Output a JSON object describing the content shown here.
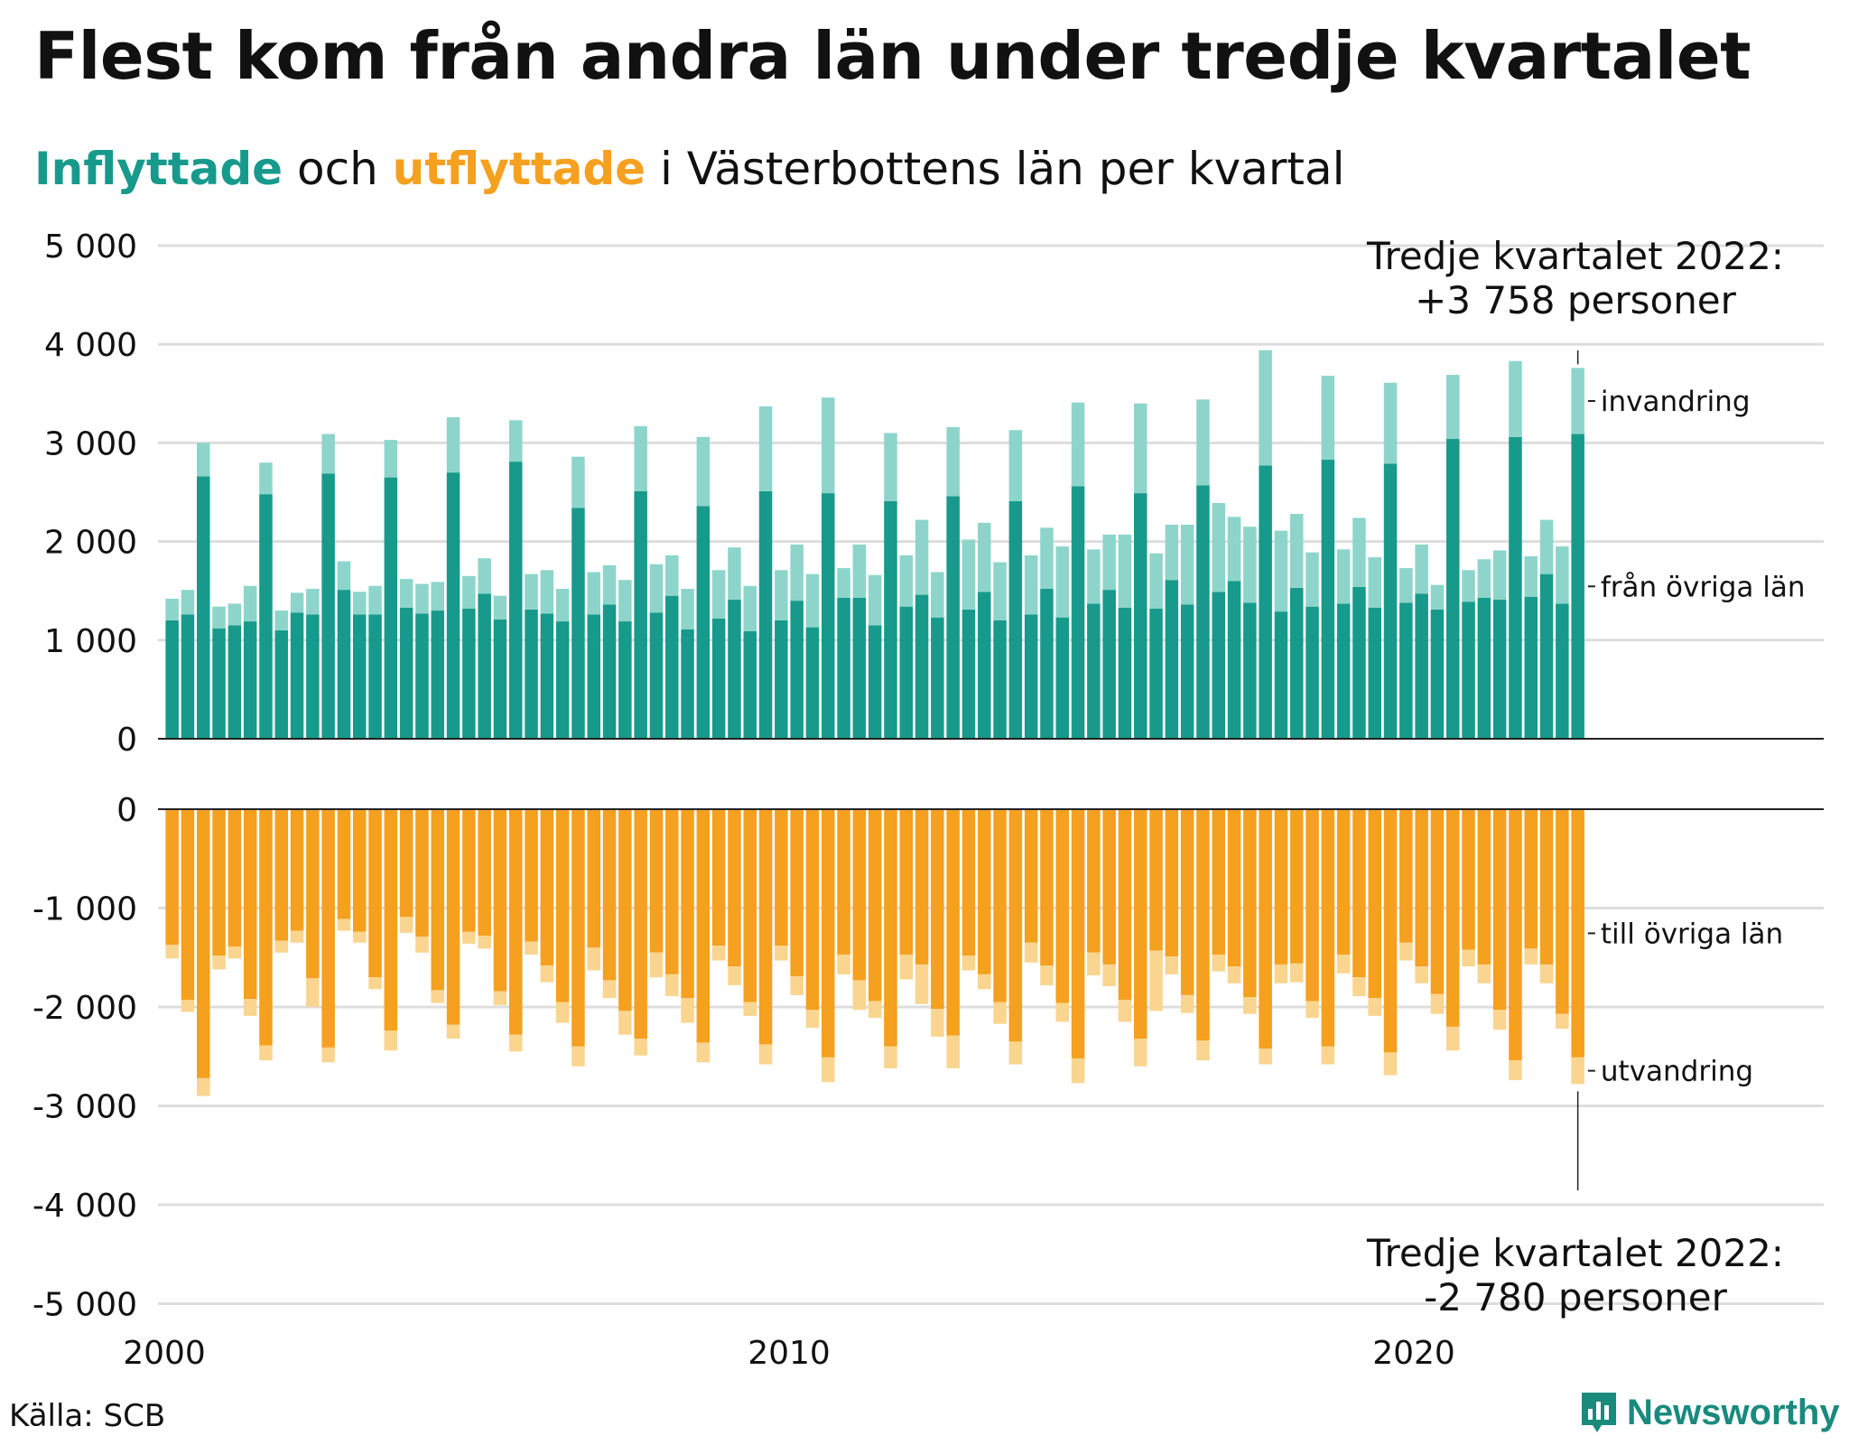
{
  "title": "Flest kom från andra län under tredje kvartalet",
  "subtitle": {
    "in_word": "Inflyttade",
    "and_word": " och ",
    "out_word": "utflyttade",
    "rest": " i Västerbottens län per kvartal"
  },
  "annotations": {
    "top_line1": "Tredje kvartalet 2022:",
    "top_line2": "+3 758 personer",
    "bottom_line1": "Tredje kvartalet 2022:",
    "bottom_line2": "-2 780 personer"
  },
  "source": "Källa: SCB",
  "brand": "Newsworthy",
  "colors": {
    "in_domestic": "#179a8b",
    "in_immigration": "#8dd5cb",
    "out_domestic": "#f5a01f",
    "out_emigration": "#fad58f",
    "grid": "#dddddd",
    "axis": "#222222"
  },
  "chart_data": {
    "type": "bar",
    "stacked": true,
    "grid": true,
    "panels": [
      {
        "name": "inflyttade",
        "ylim": [
          0,
          5000
        ],
        "yticks": [
          "0",
          "1 000",
          "2 000",
          "3 000",
          "4 000",
          "5 000"
        ]
      },
      {
        "name": "utflyttade",
        "ylim": [
          -5000,
          0
        ],
        "yticks": [
          "0",
          "-1 000",
          "-2 000",
          "-3 000",
          "-4 000",
          "-5 000"
        ]
      }
    ],
    "xticks": [
      "2000",
      "2010",
      "2020"
    ],
    "x_start": "2000Q1",
    "x_end": "2022Q3",
    "series": [
      {
        "name": "från övriga län",
        "panel": "inflyttade",
        "values": [
          1200,
          1260,
          2660,
          1120,
          1150,
          1190,
          2480,
          1100,
          1280,
          1260,
          2690,
          1510,
          1260,
          1260,
          2650,
          1330,
          1270,
          1300,
          2700,
          1320,
          1470,
          1210,
          2810,
          1310,
          1270,
          1190,
          2340,
          1260,
          1360,
          1190,
          2510,
          1280,
          1450,
          1110,
          2360,
          1220,
          1410,
          1090,
          2510,
          1200,
          1400,
          1130,
          2490,
          1430,
          1430,
          1150,
          2410,
          1340,
          1460,
          1230,
          2460,
          1310,
          1490,
          1200,
          2410,
          1260,
          1520,
          1230,
          2560,
          1370,
          1510,
          1330,
          2490,
          1320,
          1610,
          1360,
          2570,
          1490,
          1600,
          1380,
          2770,
          1290,
          1530,
          1340,
          2830,
          1370,
          1540,
          1330,
          2790,
          1380,
          1470,
          1310,
          3040,
          1390,
          1430,
          1410,
          3060,
          1440,
          1670,
          1370,
          3090
        ]
      },
      {
        "name": "invandring",
        "panel": "inflyttade",
        "values": [
          220,
          250,
          340,
          220,
          220,
          360,
          320,
          200,
          200,
          260,
          400,
          290,
          230,
          290,
          380,
          290,
          300,
          290,
          560,
          330,
          360,
          240,
          420,
          360,
          440,
          330,
          520,
          430,
          400,
          420,
          660,
          490,
          410,
          410,
          700,
          490,
          530,
          460,
          860,
          510,
          570,
          540,
          970,
          300,
          540,
          510,
          690,
          520,
          760,
          460,
          700,
          710,
          700,
          590,
          720,
          600,
          620,
          720,
          850,
          550,
          560,
          740,
          910,
          560,
          560,
          810,
          870,
          900,
          650,
          770,
          1170,
          820,
          750,
          550,
          850,
          550,
          700,
          510,
          820,
          350,
          500,
          250,
          650,
          320,
          390,
          500,
          770,
          410,
          550,
          580,
          670
        ]
      },
      {
        "name": "till övriga län",
        "panel": "utflyttade",
        "values": [
          -1370,
          -1930,
          -2720,
          -1480,
          -1390,
          -1920,
          -2390,
          -1330,
          -1230,
          -1710,
          -2410,
          -1110,
          -1240,
          -1700,
          -2240,
          -1090,
          -1290,
          -1830,
          -2180,
          -1240,
          -1280,
          -1840,
          -2280,
          -1340,
          -1580,
          -1950,
          -2400,
          -1400,
          -1730,
          -2040,
          -2320,
          -1450,
          -1670,
          -1910,
          -2360,
          -1380,
          -1590,
          -1950,
          -2380,
          -1380,
          -1690,
          -2030,
          -2510,
          -1470,
          -1730,
          -1940,
          -2400,
          -1470,
          -1570,
          -2020,
          -2290,
          -1480,
          -1670,
          -1950,
          -2350,
          -1350,
          -1580,
          -1960,
          -2520,
          -1450,
          -1570,
          -1930,
          -2320,
          -1430,
          -1490,
          -1880,
          -2340,
          -1470,
          -1590,
          -1900,
          -2420,
          -1570,
          -1560,
          -1940,
          -2400,
          -1470,
          -1700,
          -1910,
          -2460,
          -1350,
          -1590,
          -1870,
          -2200,
          -1420,
          -1570,
          -2030,
          -2540,
          -1410,
          -1570,
          -2070,
          -2510
        ]
      },
      {
        "name": "utvandring",
        "panel": "utflyttade",
        "values": [
          -140,
          -120,
          -180,
          -140,
          -120,
          -170,
          -150,
          -120,
          -120,
          -290,
          -150,
          -120,
          -110,
          -120,
          -200,
          -160,
          -160,
          -130,
          -140,
          -120,
          -130,
          -140,
          -170,
          -130,
          -170,
          -210,
          -200,
          -230,
          -180,
          -240,
          -170,
          -250,
          -220,
          -250,
          -200,
          -150,
          -190,
          -140,
          -200,
          -150,
          -190,
          -180,
          -250,
          -200,
          -300,
          -170,
          -220,
          -250,
          -400,
          -280,
          -330,
          -150,
          -150,
          -220,
          -230,
          -200,
          -200,
          -190,
          -250,
          -230,
          -220,
          -220,
          -280,
          -610,
          -180,
          -180,
          -200,
          -170,
          -170,
          -170,
          -160,
          -190,
          -190,
          -170,
          -180,
          -190,
          -190,
          -180,
          -230,
          -180,
          -170,
          -200,
          -240,
          -170,
          -190,
          -200,
          -200,
          -160,
          -190,
          -150,
          -270
        ]
      }
    ]
  }
}
